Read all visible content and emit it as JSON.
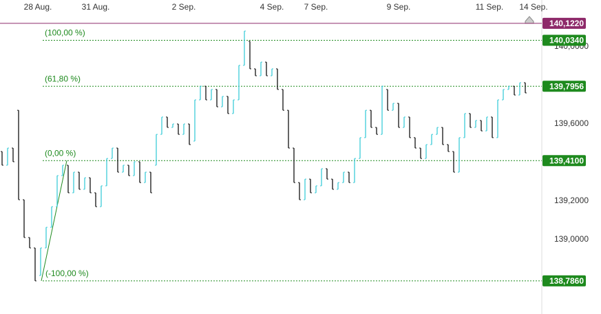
{
  "chart_data": {
    "type": "range_bar",
    "open": [
      139.457,
      139.386,
      139.475,
      139.671,
      139.207,
      139.011,
      138.957,
      138.814,
      138.957,
      139.064,
      139.171,
      139.332,
      139.386,
      139.243,
      139.35,
      139.261,
      139.321,
      139.243,
      139.171,
      139.279,
      139.421,
      139.475,
      139.35,
      139.386,
      139.332,
      139.404,
      139.296,
      139.35,
      139.386,
      139.546,
      139.636,
      139.582,
      139.6,
      139.546,
      139.6,
      139.511,
      139.725,
      139.796,
      139.725,
      139.779,
      139.689,
      139.743,
      139.654,
      139.725,
      139.904,
      140.029,
      139.886,
      139.85,
      139.921,
      139.85,
      139.886,
      139.779,
      139.671,
      139.475,
      139.296,
      139.207,
      139.314,
      139.243,
      139.279,
      139.368,
      139.314,
      139.261,
      139.296,
      139.35,
      139.296,
      139.421,
      139.529,
      139.671,
      139.582,
      139.546,
      139.779,
      139.671,
      139.707,
      139.582,
      139.636,
      139.529,
      139.475,
      139.421,
      139.493,
      139.546,
      139.582,
      139.493,
      139.457,
      139.35,
      139.529,
      139.654,
      139.582,
      139.618,
      139.564,
      139.636,
      139.529,
      139.725,
      139.779,
      139.796,
      139.75,
      139.814
    ],
    "close": [
      139.386,
      139.475,
      139.404,
      139.207,
      139.011,
      138.957,
      138.786,
      138.957,
      139.064,
      139.171,
      139.332,
      139.386,
      139.243,
      139.35,
      139.261,
      139.321,
      139.243,
      139.171,
      139.279,
      139.421,
      139.475,
      139.35,
      139.386,
      139.332,
      139.404,
      139.296,
      139.35,
      139.243,
      139.546,
      139.636,
      139.582,
      139.6,
      139.546,
      139.6,
      139.493,
      139.725,
      139.796,
      139.725,
      139.779,
      139.689,
      139.743,
      139.654,
      139.725,
      139.904,
      140.082,
      139.886,
      139.85,
      139.921,
      139.85,
      139.886,
      139.779,
      139.671,
      139.475,
      139.296,
      139.207,
      139.314,
      139.243,
      139.279,
      139.368,
      139.314,
      139.261,
      139.296,
      139.35,
      139.296,
      139.421,
      139.529,
      139.671,
      139.582,
      139.546,
      139.796,
      139.671,
      139.707,
      139.582,
      139.636,
      139.529,
      139.475,
      139.421,
      139.493,
      139.546,
      139.582,
      139.493,
      139.457,
      139.35,
      139.529,
      139.654,
      139.582,
      139.618,
      139.564,
      139.636,
      139.529,
      139.725,
      139.779,
      139.796,
      139.75,
      139.814,
      139.761
    ],
    "up_color": "#3ccbd8",
    "down_color": "#111111",
    "xlim": [
      -0.375,
      97.75
    ],
    "xticks": [
      {
        "value": 6.5,
        "label": "28 Aug."
      },
      {
        "value": 17,
        "label": "31 Aug."
      },
      {
        "value": 33,
        "label": "2 Sep."
      },
      {
        "value": 49,
        "label": "4 Sep."
      },
      {
        "value": 57,
        "label": "7 Sep."
      },
      {
        "value": 72,
        "label": "9 Sep."
      },
      {
        "value": 88.5,
        "label": "11 Sep."
      },
      {
        "value": 96.5,
        "label": "14 Sep."
      }
    ],
    "ylim": [
      138.725,
      140.243
    ],
    "yticks": [
      {
        "value": 140.0,
        "label": "140,0000"
      },
      {
        "value": 139.6,
        "label": "139,6000"
      },
      {
        "value": 139.2,
        "label": "139,2000"
      },
      {
        "value": 139.0,
        "label": "139,0000"
      }
    ],
    "levels": {
      "names": [
        "(100,00 %)",
        "(61,80 %)",
        "(0,00 %)",
        "(-100,00 %)"
      ],
      "values": [
        140.034,
        139.7956,
        139.41,
        138.786
      ],
      "value_labels": [
        "140,0340",
        "139,7956",
        "139,4100",
        "138,7860"
      ],
      "color": "#1e8a1e"
    },
    "last_price": {
      "value": 140.122,
      "value_label": "140,1220",
      "color": "#8e2a6a"
    }
  }
}
